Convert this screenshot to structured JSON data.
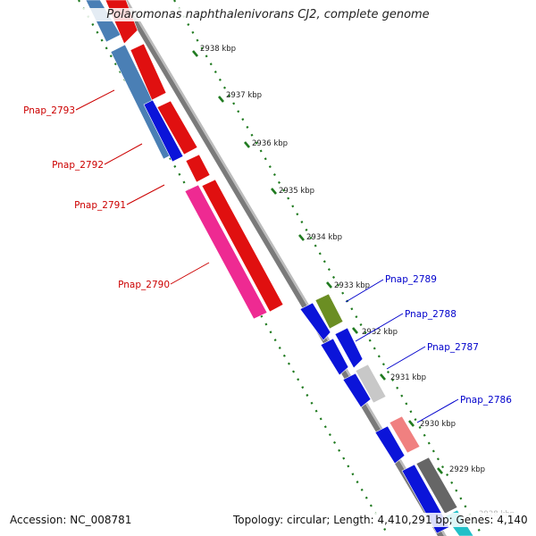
{
  "title": "Polaromonas naphthalenivorans CJ2, complete genome",
  "footer": {
    "accession": "Accession: NC_008781",
    "summary": "Topology: circular; Length: 4,410,291 bp; Genes: 4,140"
  },
  "colors": {
    "backbone": "#8c8c8c",
    "tick": "#1f7a1f",
    "label_left": "#cc0000",
    "label_right": "#0000cc"
  },
  "scale_ticks": [
    {
      "label": "2938 kbp"
    },
    {
      "label": "2937 kbp"
    },
    {
      "label": "2936 kbp"
    },
    {
      "label": "2935 kbp"
    },
    {
      "label": "2934 kbp"
    },
    {
      "label": "2933 kbp"
    },
    {
      "label": "2932 kbp"
    },
    {
      "label": "2931 kbp"
    },
    {
      "label": "2930 kbp"
    },
    {
      "label": "2929 kbp"
    },
    {
      "label": "2928 kbp"
    }
  ],
  "gene_labels_left": [
    {
      "name": "Pnap_2793"
    },
    {
      "name": "Pnap_2792"
    },
    {
      "name": "Pnap_2791"
    },
    {
      "name": "Pnap_2790"
    }
  ],
  "gene_labels_right": [
    {
      "name": "Pnap_2789"
    },
    {
      "name": "Pnap_2788"
    },
    {
      "name": "Pnap_2787"
    },
    {
      "name": "Pnap_2786"
    }
  ]
}
